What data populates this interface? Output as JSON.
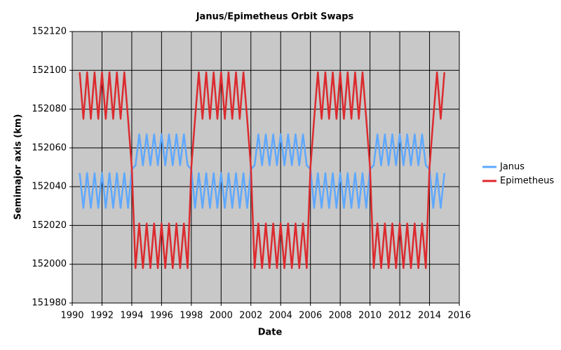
{
  "chart_data": {
    "type": "line",
    "title": "Janus/Epimetheus Orbit Swaps",
    "x_label": "Date",
    "y_label": "Semimajor axis (km)",
    "xlim": [
      1990,
      2016
    ],
    "xticks": [
      1990,
      1992,
      1994,
      1996,
      1998,
      2000,
      2002,
      2004,
      2006,
      2008,
      2010,
      2012,
      2014,
      2016
    ],
    "ylim": [
      151980,
      152120
    ],
    "yticks": [
      151980,
      152000,
      152020,
      152040,
      152060,
      152080,
      152100,
      152120
    ],
    "grid": true,
    "legend": "right",
    "background": "#c8c8c8",
    "x": [
      1990.5,
      1990.75,
      1991,
      1991.25,
      1991.5,
      1991.75,
      1992,
      1992.25,
      1992.5,
      1992.75,
      1993,
      1993.25,
      1993.5,
      1993.75,
      1994,
      1994.25,
      1994.5,
      1994.75,
      1995,
      1995.25,
      1995.5,
      1995.75,
      1996,
      1996.25,
      1996.5,
      1996.75,
      1997,
      1997.25,
      1997.5,
      1997.75,
      1998,
      1998.25,
      1998.5,
      1998.75,
      1999,
      1999.25,
      1999.5,
      1999.75,
      2000,
      2000.25,
      2000.5,
      2000.75,
      2001,
      2001.25,
      2001.5,
      2001.75,
      2002,
      2002.25,
      2002.5,
      2002.75,
      2003,
      2003.25,
      2003.5,
      2003.75,
      2004,
      2004.25,
      2004.5,
      2004.75,
      2005,
      2005.25,
      2005.5,
      2005.75,
      2006,
      2006.25,
      2006.5,
      2006.75,
      2007,
      2007.25,
      2007.5,
      2007.75,
      2008,
      2008.25,
      2008.5,
      2008.75,
      2009,
      2009.25,
      2009.5,
      2009.75,
      2010,
      2010.25,
      2010.5,
      2010.75,
      2011,
      2011.25,
      2011.5,
      2011.75,
      2012,
      2012.25,
      2012.5,
      2012.75,
      2013,
      2013.25,
      2013.5,
      2013.75,
      2014,
      2014.25,
      2014.5,
      2014.75,
      2015
    ],
    "series": [
      {
        "name": "Janus",
        "color": "#5ea8ff",
        "values": [
          152047,
          152029,
          152047,
          152029,
          152047,
          152029,
          152047,
          152029,
          152047,
          152029,
          152047,
          152029,
          152047,
          152029,
          152049,
          152051,
          152067,
          152051,
          152067,
          152051,
          152067,
          152051,
          152067,
          152051,
          152067,
          152051,
          152067,
          152051,
          152067,
          152051,
          152049,
          152029,
          152047,
          152029,
          152047,
          152029,
          152047,
          152029,
          152047,
          152029,
          152047,
          152029,
          152047,
          152029,
          152047,
          152029,
          152049,
          152051,
          152067,
          152051,
          152067,
          152051,
          152067,
          152051,
          152067,
          152051,
          152067,
          152051,
          152067,
          152051,
          152067,
          152051,
          152049,
          152029,
          152047,
          152029,
          152047,
          152029,
          152047,
          152029,
          152047,
          152029,
          152047,
          152029,
          152047,
          152029,
          152047,
          152029,
          152049,
          152051,
          152067,
          152051,
          152067,
          152051,
          152067,
          152051,
          152067,
          152051,
          152067,
          152051,
          152067,
          152051,
          152067,
          152051,
          152049,
          152029,
          152047,
          152029,
          152047
        ]
      },
      {
        "name": "Epimetheus",
        "color": "#dc2a2e",
        "values": [
          152099,
          152075,
          152099,
          152075,
          152099,
          152075,
          152099,
          152075,
          152099,
          152075,
          152099,
          152075,
          152099,
          152075,
          152050,
          151998,
          152021,
          151998,
          152021,
          151998,
          152021,
          151998,
          152021,
          151998,
          152021,
          151998,
          152021,
          151998,
          152021,
          151998,
          152050,
          152075,
          152099,
          152075,
          152099,
          152075,
          152099,
          152075,
          152099,
          152075,
          152099,
          152075,
          152099,
          152075,
          152099,
          152075,
          152050,
          151998,
          152021,
          151998,
          152021,
          151998,
          152021,
          151998,
          152021,
          151998,
          152021,
          151998,
          152021,
          151998,
          152021,
          151998,
          152050,
          152075,
          152099,
          152075,
          152099,
          152075,
          152099,
          152075,
          152099,
          152075,
          152099,
          152075,
          152099,
          152075,
          152099,
          152075,
          152050,
          151998,
          152021,
          151998,
          152021,
          151998,
          152021,
          151998,
          152021,
          151998,
          152021,
          151998,
          152021,
          151998,
          152021,
          151998,
          152050,
          152075,
          152099,
          152075,
          152099
        ]
      }
    ]
  }
}
